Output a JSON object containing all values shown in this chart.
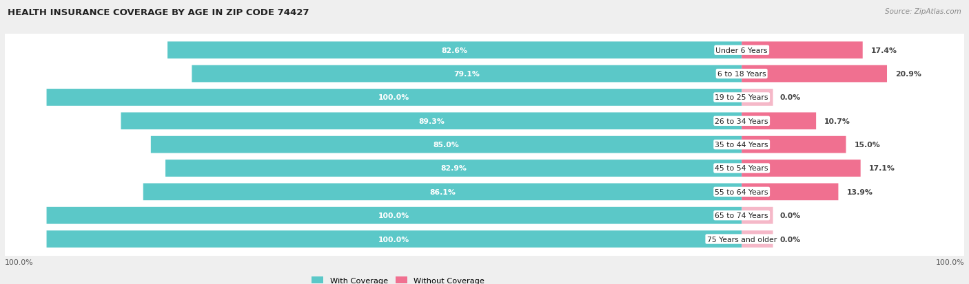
{
  "title": "HEALTH INSURANCE COVERAGE BY AGE IN ZIP CODE 74427",
  "source": "Source: ZipAtlas.com",
  "categories": [
    "Under 6 Years",
    "6 to 18 Years",
    "19 to 25 Years",
    "26 to 34 Years",
    "35 to 44 Years",
    "45 to 54 Years",
    "55 to 64 Years",
    "65 to 74 Years",
    "75 Years and older"
  ],
  "with_coverage": [
    82.6,
    79.1,
    100.0,
    89.3,
    85.0,
    82.9,
    86.1,
    100.0,
    100.0
  ],
  "without_coverage": [
    17.4,
    20.9,
    0.0,
    10.7,
    15.0,
    17.1,
    13.9,
    0.0,
    0.0
  ],
  "color_with": "#5BC8C8",
  "color_without": "#F07090",
  "color_without_light": "#F5B8C8",
  "bg_color": "#EFEFEF",
  "row_bg_color": "#FFFFFF",
  "row_alt_color": "#F7F7F7"
}
